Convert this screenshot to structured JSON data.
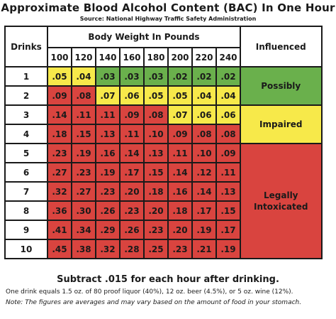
{
  "title": "Approximate Blood Alcohol Content (BAC) In One Hour",
  "source": "Source: National Highway Traffic Safety Administration",
  "headers": {
    "drinks": "Drinks",
    "body_weight": "Body Weight In Pounds",
    "influenced": "Influenced"
  },
  "weights": [
    "100",
    "120",
    "140",
    "160",
    "180",
    "200",
    "220",
    "240"
  ],
  "rows": [
    {
      "drinks": "1",
      "values": [
        ".05",
        ".04",
        ".03",
        ".03",
        ".03",
        ".02",
        ".02",
        ".02"
      ],
      "colors": [
        "y",
        "y",
        "g",
        "g",
        "g",
        "g",
        "g",
        "g"
      ]
    },
    {
      "drinks": "2",
      "values": [
        ".09",
        ".08",
        ".07",
        ".06",
        ".05",
        ".05",
        ".04",
        ".04"
      ],
      "colors": [
        "r",
        "r",
        "y",
        "y",
        "y",
        "y",
        "y",
        "y"
      ]
    },
    {
      "drinks": "3",
      "values": [
        ".14",
        ".11",
        ".11",
        ".09",
        ".08",
        ".07",
        ".06",
        ".06"
      ],
      "colors": [
        "r",
        "r",
        "r",
        "r",
        "r",
        "y",
        "y",
        "y"
      ]
    },
    {
      "drinks": "4",
      "values": [
        ".18",
        ".15",
        ".13",
        ".11",
        ".10",
        ".09",
        ".08",
        ".08"
      ],
      "colors": [
        "r",
        "r",
        "r",
        "r",
        "r",
        "r",
        "r",
        "r"
      ]
    },
    {
      "drinks": "5",
      "values": [
        ".23",
        ".19",
        ".16",
        ".14",
        ".13",
        ".11",
        ".10",
        ".09"
      ],
      "colors": [
        "r",
        "r",
        "r",
        "r",
        "r",
        "r",
        "r",
        "r"
      ]
    },
    {
      "drinks": "6",
      "values": [
        ".27",
        ".23",
        ".19",
        ".17",
        ".15",
        ".14",
        ".12",
        ".11"
      ],
      "colors": [
        "r",
        "r",
        "r",
        "r",
        "r",
        "r",
        "r",
        "r"
      ]
    },
    {
      "drinks": "7",
      "values": [
        ".32",
        ".27",
        ".23",
        ".20",
        ".18",
        ".16",
        ".14",
        ".13"
      ],
      "colors": [
        "r",
        "r",
        "r",
        "r",
        "r",
        "r",
        "r",
        "r"
      ]
    },
    {
      "drinks": "8",
      "values": [
        ".36",
        ".30",
        ".26",
        ".23",
        ".20",
        ".18",
        ".17",
        ".15"
      ],
      "colors": [
        "r",
        "r",
        "r",
        "r",
        "r",
        "r",
        "r",
        "r"
      ]
    },
    {
      "drinks": "9",
      "values": [
        ".41",
        ".34",
        ".29",
        ".26",
        ".23",
        ".20",
        ".19",
        ".17"
      ],
      "colors": [
        "r",
        "r",
        "r",
        "r",
        "r",
        "r",
        "r",
        "r"
      ]
    },
    {
      "drinks": "10",
      "values": [
        ".45",
        ".38",
        ".32",
        ".28",
        ".25",
        ".23",
        ".21",
        ".19"
      ],
      "colors": [
        "r",
        "r",
        "r",
        "r",
        "r",
        "r",
        "r",
        "r"
      ]
    }
  ],
  "influence_levels": [
    {
      "label": "Possibly",
      "color": "#6ab04c"
    },
    {
      "label": "Impaired",
      "color": "#f7e94a"
    },
    {
      "label": "Legally Intoxicated",
      "color": "#d9443f"
    }
  ],
  "subtract_note": "Subtract .015 for each hour after drinking.",
  "footnote1": "One drink equals 1.5 oz. of 80 proof liquor (40%), 12 oz. beer (4.5%), or 5 oz. wine (12%).",
  "footnote2": "Note: The figures are averages and may vary based on the amount of food in your stomach."
}
